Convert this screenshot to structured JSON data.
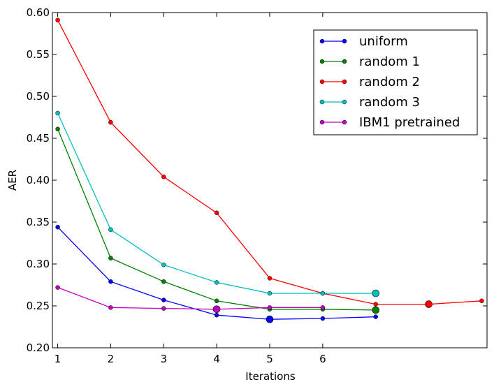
{
  "chart_data": {
    "type": "line",
    "xlabel": "Iterations",
    "ylabel": "AER",
    "xlim": [
      0.9,
      9.1
    ],
    "ylim": [
      0.2,
      0.6
    ],
    "xticks": [
      1,
      2,
      3,
      4,
      5,
      6
    ],
    "yticks": [
      0.2,
      0.25,
      0.3,
      0.35,
      0.4,
      0.45,
      0.5,
      0.55,
      0.6
    ],
    "ytick_labels": [
      "0.20",
      "0.25",
      "0.30",
      "0.35",
      "0.40",
      "0.45",
      "0.50",
      "0.55",
      "0.60"
    ],
    "grid": false,
    "legend_position": "top-right",
    "series": [
      {
        "name": "uniform",
        "color": "#0000ff",
        "x": [
          1,
          2,
          3,
          4,
          5,
          6,
          7
        ],
        "y": [
          0.344,
          0.279,
          0.257,
          0.239,
          0.234,
          0.235,
          0.237
        ],
        "best_x": 5,
        "best_y": 0.234
      },
      {
        "name": "random 1",
        "color": "#008000",
        "x": [
          1,
          2,
          3,
          4,
          5,
          6,
          7
        ],
        "y": [
          0.461,
          0.307,
          0.279,
          0.256,
          0.246,
          0.246,
          0.245
        ],
        "best_x": 7,
        "best_y": 0.245
      },
      {
        "name": "random 2",
        "color": "#ff0000",
        "x": [
          1,
          2,
          3,
          4,
          5,
          6,
          7,
          8,
          9
        ],
        "y": [
          0.591,
          0.469,
          0.404,
          0.361,
          0.283,
          0.265,
          0.252,
          0.252,
          0.256
        ],
        "best_x": 8,
        "best_y": 0.252
      },
      {
        "name": "random 3",
        "color": "#00bfbf",
        "x": [
          1,
          2,
          3,
          4,
          5,
          6,
          7
        ],
        "y": [
          0.48,
          0.341,
          0.299,
          0.278,
          0.265,
          0.265,
          0.265
        ],
        "best_x": 7,
        "best_y": 0.265
      },
      {
        "name": "IBM1 pretrained",
        "color": "#bf00bf",
        "x": [
          1,
          2,
          3,
          4,
          5,
          6
        ],
        "y": [
          0.272,
          0.248,
          0.247,
          0.246,
          0.248,
          0.248
        ],
        "best_x": 4,
        "best_y": 0.246
      }
    ]
  }
}
